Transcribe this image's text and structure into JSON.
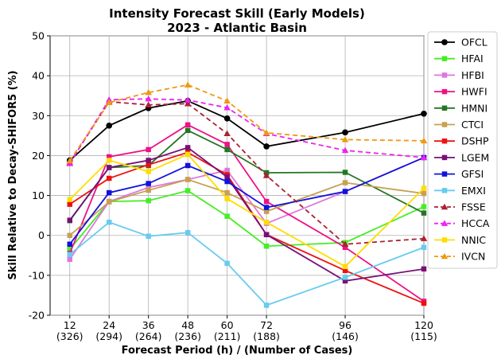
{
  "chart_data": {
    "type": "line",
    "title": "Intensity Forecast Skill (Early Models)",
    "subtitle": "2023 - Atlantic Basin",
    "xlabel": "Forecast Period (h) / (Number of Cases)",
    "ylabel": "Skill Relative to Decay-SHIFOR5 (%)",
    "ylim": [
      -20,
      50
    ],
    "yticks": [
      "-20",
      "-10",
      "0",
      "10",
      "20",
      "30",
      "40",
      "50"
    ],
    "categories": [
      "12",
      "24",
      "36",
      "48",
      "60",
      "72",
      "96",
      "120"
    ],
    "case_labels": [
      "(326)",
      "(294)",
      "(264)",
      "(236)",
      "(211)",
      "(188)",
      "(146)",
      "(115)"
    ],
    "legend_position": "right",
    "series": [
      {
        "name": "OFCL",
        "color": "#000000",
        "marker": "circle",
        "dash": "solid",
        "values": [
          18.8,
          27.5,
          31.9,
          33.7,
          29.3,
          22.3,
          25.8,
          30.5
        ]
      },
      {
        "name": "HFAI",
        "color": "#44ee22",
        "marker": "square",
        "dash": "solid",
        "values": [
          -3.5,
          8.5,
          8.7,
          11.2,
          4.8,
          -2.7,
          -1.8,
          7.2
        ]
      },
      {
        "name": "HFBI",
        "color": "#dd77dd",
        "marker": "square",
        "dash": "solid",
        "values": [
          -6.0,
          8.5,
          12.0,
          14.0,
          16.3,
          3.0,
          11.0,
          19.5
        ]
      },
      {
        "name": "HWFI",
        "color": "#ee1188",
        "marker": "square",
        "dash": "solid",
        "values": [
          -4.5,
          19.7,
          21.5,
          27.7,
          22.8,
          8.5,
          -3.0,
          -16.5
        ]
      },
      {
        "name": "HMNI",
        "color": "#227722",
        "marker": "square",
        "dash": "solid",
        "values": [
          3.7,
          17.0,
          17.5,
          26.3,
          21.5,
          15.7,
          15.8,
          5.6
        ]
      },
      {
        "name": "CTCI",
        "color": "#c8a050",
        "marker": "square",
        "dash": "solid",
        "values": [
          0.0,
          8.4,
          11.3,
          14.0,
          10.7,
          6.0,
          13.2,
          10.5
        ]
      },
      {
        "name": "DSHP",
        "color": "#ee1111",
        "marker": "square",
        "dash": "solid",
        "values": [
          7.8,
          14.3,
          17.7,
          20.8,
          15.2,
          0.2,
          -8.8,
          -17.0
        ]
      },
      {
        "name": "LGEM",
        "color": "#771177",
        "marker": "square",
        "dash": "solid",
        "values": [
          3.8,
          17.0,
          18.8,
          22.0,
          14.6,
          0.2,
          -11.4,
          -8.4
        ]
      },
      {
        "name": "GFSI",
        "color": "#1111dd",
        "marker": "square",
        "dash": "solid",
        "values": [
          -2.2,
          10.7,
          13.0,
          17.5,
          13.5,
          7.0,
          11.0,
          19.5
        ]
      },
      {
        "name": "EMXI",
        "color": "#66ccf0",
        "marker": "square",
        "dash": "solid",
        "values": [
          -4.8,
          3.3,
          -0.2,
          0.7,
          -7.0,
          -17.5,
          -10.5,
          -3.0
        ]
      },
      {
        "name": "FSSE",
        "color": "#aa2233",
        "marker": "triangle",
        "dash": "dashed",
        "values": [
          18.2,
          33.5,
          32.7,
          33.0,
          25.5,
          15.0,
          -2.2,
          -0.8
        ]
      },
      {
        "name": "HCCA",
        "color": "#ee22ee",
        "marker": "triangle",
        "dash": "dashed",
        "values": [
          18.0,
          34.0,
          34.2,
          33.9,
          32.0,
          25.5,
          21.3,
          19.5
        ]
      },
      {
        "name": "NNIC",
        "color": "#ffdd00",
        "marker": "square",
        "dash": "solid",
        "values": [
          9.0,
          18.8,
          16.0,
          20.3,
          9.2,
          3.3,
          -7.8,
          11.8
        ]
      },
      {
        "name": "IVCN",
        "color": "#ee9911",
        "marker": "triangle",
        "dash": "dashed",
        "values": [
          18.7,
          33.3,
          35.8,
          37.7,
          33.7,
          25.7,
          24.0,
          23.7
        ]
      }
    ]
  }
}
